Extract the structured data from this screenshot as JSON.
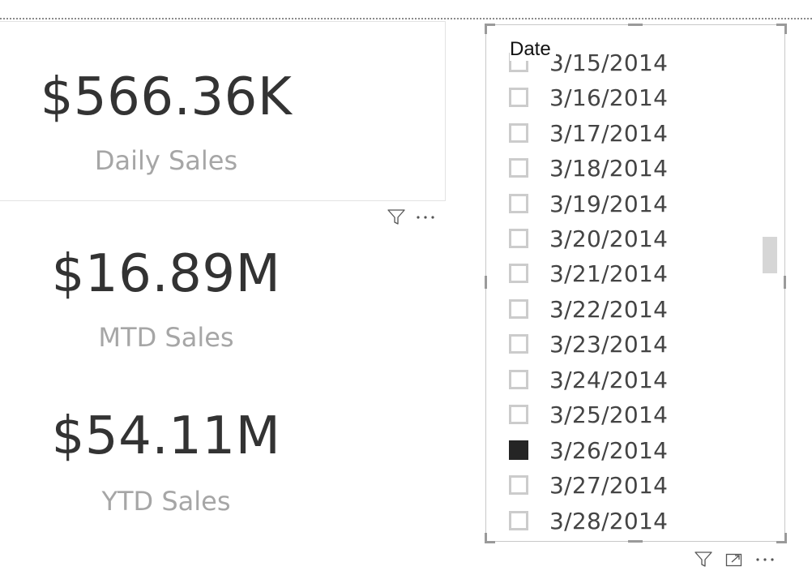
{
  "cards": [
    {
      "value": "$566.36K",
      "label": "Daily Sales"
    },
    {
      "value": "$16.89M",
      "label": "MTD Sales"
    },
    {
      "value": "$54.11M",
      "label": "YTD Sales"
    }
  ],
  "slicer": {
    "title": "Date",
    "items": [
      {
        "label": "3/15/2014",
        "checked": false
      },
      {
        "label": "3/16/2014",
        "checked": false
      },
      {
        "label": "3/17/2014",
        "checked": false
      },
      {
        "label": "3/18/2014",
        "checked": false
      },
      {
        "label": "3/19/2014",
        "checked": false
      },
      {
        "label": "3/20/2014",
        "checked": false
      },
      {
        "label": "3/21/2014",
        "checked": false
      },
      {
        "label": "3/22/2014",
        "checked": false
      },
      {
        "label": "3/23/2014",
        "checked": false
      },
      {
        "label": "3/24/2014",
        "checked": false
      },
      {
        "label": "3/25/2014",
        "checked": false
      },
      {
        "label": "3/26/2014",
        "checked": true
      },
      {
        "label": "3/27/2014",
        "checked": false
      },
      {
        "label": "3/28/2014",
        "checked": false
      }
    ]
  },
  "headers": {
    "card_header": {
      "icons": [
        "filter-icon",
        "more-options-icon"
      ]
    },
    "slicer_header": {
      "icons": [
        "filter-icon",
        "focus-mode-icon",
        "more-options-icon"
      ]
    }
  },
  "colors": {
    "value_text": "#333333",
    "label_text": "#a6a6a6",
    "checked_box": "#252525",
    "unchecked_border": "#cccccc"
  }
}
